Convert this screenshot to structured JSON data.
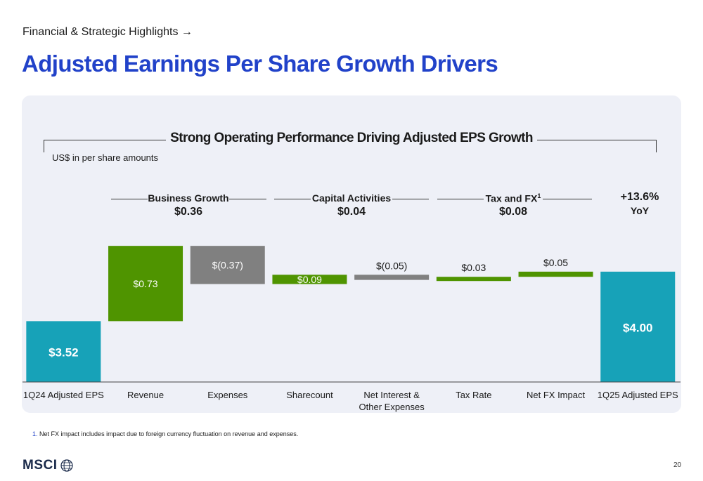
{
  "header": {
    "breadcrumb": "Financial & Strategic Highlights →",
    "title": "Adjusted Earnings Per Share Growth Drivers"
  },
  "panel": {
    "headline": "Strong Operating Performance Driving Adjusted EPS Growth",
    "units_note": "US$ in per share amounts",
    "groups": [
      {
        "label": "Business Growth",
        "value": "$0.36"
      },
      {
        "label": "Capital Activities",
        "value": "$0.04"
      },
      {
        "label": "Tax and FX",
        "sup": "1",
        "value": "$0.08"
      }
    ],
    "yoy": {
      "value": "+13.6%",
      "label": "YoY"
    }
  },
  "chart_data": {
    "type": "bar",
    "subtype": "waterfall",
    "categories": [
      "1Q24 Adjusted EPS",
      "Revenue",
      "Expenses",
      "Sharecount",
      "Net Interest & Other Expenses",
      "Tax Rate",
      "Net FX Impact",
      "1Q25 Adjusted EPS"
    ],
    "values": [
      3.52,
      0.73,
      -0.37,
      0.09,
      -0.05,
      0.03,
      0.05,
      4.0
    ],
    "kinds": [
      "total",
      "delta",
      "delta",
      "delta",
      "delta",
      "delta",
      "delta",
      "total"
    ],
    "data_labels": [
      "$3.52",
      "$0.73",
      "$(0.37)",
      "$0.09",
      "$(0.05)",
      "$0.03",
      "$0.05",
      "$4.00"
    ],
    "colors": {
      "total": "#17a2b8",
      "increase": "#4f9400",
      "decrease": "#808080"
    }
  },
  "footer": {
    "footnote_num": "1.",
    "footnote_text": "Net FX impact includes impact due to foreign currency fluctuation on revenue and expenses.",
    "logo_text": "MSCI",
    "page_number": "20"
  }
}
